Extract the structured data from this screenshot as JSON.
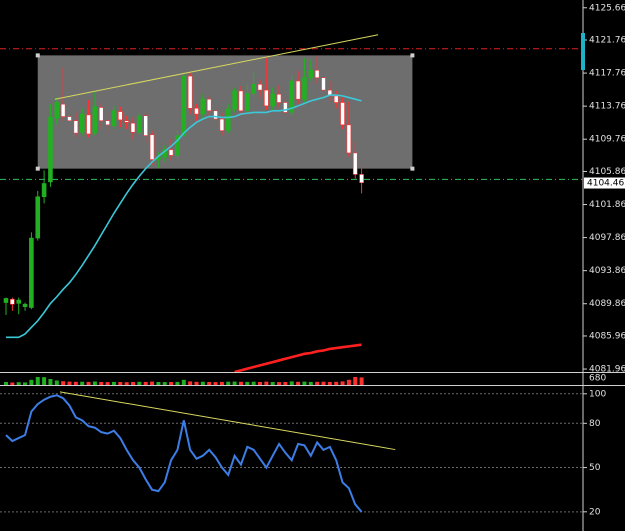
{
  "chart_data": {
    "type": "candlestick",
    "price": {
      "ylim": [
        4081.6,
        4126.6
      ],
      "yticks": [
        4125.66,
        4121.76,
        4117.76,
        4113.76,
        4109.76,
        4105.86,
        4101.86,
        4097.86,
        4093.86,
        4089.86,
        4085.96,
        4081.96
      ],
      "current_price": 4104.46,
      "bull_color": "#22b022",
      "bear_color": "#ffffff",
      "bear_wick_color": "#ff3030",
      "candles": {
        "open": [
          4090.0,
          4090.4,
          4089.9,
          4089.5,
          4089.4,
          4097.8,
          4102.8,
          4104.6,
          4112.3,
          4114.0,
          4112.5,
          4112.0,
          4110.6,
          4112.7,
          4110.5,
          4113.6,
          4112.0,
          4111.4,
          4113.1,
          4112.0,
          4111.7,
          4110.6,
          4112.6,
          4110.3,
          4107.3,
          4107.6,
          4108.5,
          4107.8,
          4110.2,
          4117.4,
          4113.5,
          4112.8,
          4114.6,
          4113.2,
          4112.2,
          4110.8,
          4113.4,
          4115.6,
          4113.2,
          4115.3,
          4116.4,
          4115.7,
          4113.8,
          4115.2,
          4114.2,
          4113.0,
          4116.8,
          4114.6,
          4117.2,
          4118.1,
          4117.2,
          4115.7,
          4115.0,
          4114.2,
          4111.5,
          4108.1,
          4105.5
        ],
        "high": [
          4090.6,
          4090.6,
          4090.6,
          4090.0,
          4098.5,
          4103.5,
          4106.0,
          4114.0,
          4114.8,
          4118.4,
          4113.5,
          4113.0,
          4113.5,
          4114.5,
          4115.5,
          4114.2,
          4113.0,
          4113.8,
          4113.7,
          4112.6,
          4112.4,
          4113.1,
          4112.9,
          4110.8,
          4108.2,
          4109.0,
          4109.8,
          4110.8,
          4117.8,
          4117.8,
          4114.0,
          4115.2,
          4115.0,
          4113.8,
          4113.0,
          4114.0,
          4116.0,
          4116.2,
          4116.5,
          4118.0,
          4117.0,
          4119.6,
          4116.0,
          4116.3,
          4115.0,
          4117.4,
          4118.0,
          4119.6,
          4119.4,
          4119.8,
          4118.6,
          4116.8,
          4115.6,
          4114.8,
          4114.3,
          4109.5,
          4106.6
        ],
        "low": [
          4088.5,
          4089.0,
          4088.6,
          4089.0,
          4089.2,
          4097.5,
          4102.0,
          4104.0,
          4111.5,
          4112.0,
          4111.0,
          4110.0,
          4110.2,
          4110.0,
          4110.2,
          4111.0,
          4110.5,
          4111.0,
          4111.2,
          4111.0,
          4109.8,
          4110.4,
          4109.4,
          4106.6,
          4106.3,
          4107.0,
          4107.2,
          4107.4,
          4110.0,
          4112.8,
          4112.0,
          4112.3,
          4112.6,
          4111.4,
          4110.2,
          4110.5,
          4113.0,
          4112.7,
          4112.8,
          4114.8,
          4114.8,
          4113.3,
          4113.2,
          4113.6,
          4112.5,
          4112.6,
          4114.0,
          4114.2,
          4116.8,
          4116.5,
          4115.0,
          4114.4,
          4113.5,
          4111.0,
          4107.6,
          4105.0,
          4103.2
        ],
        "close": [
          4090.5,
          4089.8,
          4090.3,
          4089.8,
          4097.8,
          4102.8,
          4104.4,
          4112.4,
          4114.2,
          4112.5,
          4112.0,
          4110.5,
          4112.8,
          4110.4,
          4113.7,
          4112.0,
          4111.5,
          4113.2,
          4112.1,
          4111.8,
          4110.6,
          4112.6,
          4110.2,
          4107.3,
          4107.6,
          4108.5,
          4107.8,
          4110.2,
          4117.4,
          4113.5,
          4112.8,
          4114.6,
          4113.2,
          4112.2,
          4110.8,
          4113.4,
          4115.6,
          4113.2,
          4115.3,
          4116.4,
          4115.7,
          4113.8,
          4115.2,
          4114.2,
          4113.0,
          4116.8,
          4114.6,
          4117.2,
          4118.1,
          4117.2,
          4115.7,
          4115.0,
          4114.2,
          4111.5,
          4108.1,
          4105.5,
          4104.5
        ]
      },
      "ma_fast": {
        "color": "#3cc8d8",
        "values": [
          4085.8,
          4085.8,
          4085.8,
          4086.2,
          4087.0,
          4087.8,
          4088.8,
          4089.9,
          4090.7,
          4091.6,
          4092.4,
          4093.4,
          4094.5,
          4095.7,
          4096.9,
          4098.2,
          4099.5,
          4100.8,
          4102.0,
          4103.2,
          4104.3,
          4105.3,
          4106.2,
          4107.0,
          4107.7,
          4108.3,
          4108.9,
          4109.6,
          4110.5,
          4111.2,
          4111.8,
          4112.2,
          4112.5,
          4112.5,
          4112.4,
          4112.4,
          4112.5,
          4112.8,
          4112.9,
          4113.0,
          4113.0,
          4113.0,
          4113.2,
          4113.2,
          4113.3,
          4113.5,
          4113.8,
          4114.1,
          4114.4,
          4114.6,
          4114.8,
          4115.1,
          4115.1,
          4115.0,
          4114.8,
          4114.6,
          4114.4
        ]
      },
      "ma_slow": {
        "color": "#ff2020",
        "values": [
          null,
          null,
          null,
          null,
          null,
          null,
          null,
          null,
          null,
          null,
          null,
          null,
          null,
          null,
          null,
          null,
          null,
          null,
          null,
          null,
          null,
          null,
          null,
          null,
          null,
          null,
          null,
          null,
          null,
          null,
          null,
          null,
          null,
          null,
          null,
          null,
          4081.6,
          4081.8,
          4082.0,
          4082.2,
          4082.4,
          4082.6,
          4082.8,
          4083.0,
          4083.2,
          4083.4,
          4083.6,
          4083.8,
          4083.9,
          4084.1,
          4084.2,
          4084.4,
          4084.5,
          4084.6,
          4084.7,
          4084.8,
          4084.9
        ]
      },
      "lines": [
        {
          "color": "#e02020",
          "value": 4120.7
        },
        {
          "color": "#30c060",
          "value": 4104.9
        }
      ],
      "rectangle": {
        "color": "#6e6e6e",
        "x": [
          5,
          64
        ],
        "y": [
          4119.9,
          4106.2
        ]
      },
      "trendline": {
        "color": "#d8d860",
        "x": [
          7.7,
          58.6
        ],
        "y": [
          4114.6,
          4122.4
        ]
      }
    },
    "volume": {
      "ylim": [
        0,
        1000
      ],
      "yticks": [
        680
      ],
      "values": [
        300,
        250,
        280,
        260,
        520,
        800,
        780,
        600,
        450,
        380,
        340,
        320,
        330,
        310,
        350,
        300,
        290,
        310,
        300,
        280,
        300,
        320,
        310,
        340,
        300,
        290,
        300,
        310,
        520,
        360,
        320,
        330,
        300,
        290,
        310,
        330,
        340,
        320,
        310,
        330,
        300,
        340,
        300,
        290,
        300,
        360,
        320,
        340,
        310,
        320,
        330,
        300,
        320,
        360,
        520,
        800,
        760
      ]
    },
    "oscillator": {
      "ylim": [
        7,
        104.6
      ],
      "yticks": [
        100,
        80,
        50,
        20
      ],
      "color": "#3d7ee6",
      "values": [
        72,
        68,
        70,
        72,
        88,
        93,
        96,
        98,
        99,
        97,
        92,
        84,
        82,
        78,
        77,
        74,
        73,
        75,
        70,
        62,
        55,
        50,
        42,
        35,
        34,
        40,
        55,
        62,
        82,
        62,
        56,
        58,
        62,
        57,
        50,
        45,
        58,
        52,
        64,
        62,
        56,
        50,
        58,
        66,
        60,
        55,
        66,
        65,
        58,
        67,
        62,
        64,
        55,
        40,
        36,
        25,
        20
      ],
      "trendline": {
        "color": "#d8d860",
        "x": [
          8.5,
          61.3
        ],
        "y": [
          101.3,
          62.2
        ]
      }
    }
  }
}
